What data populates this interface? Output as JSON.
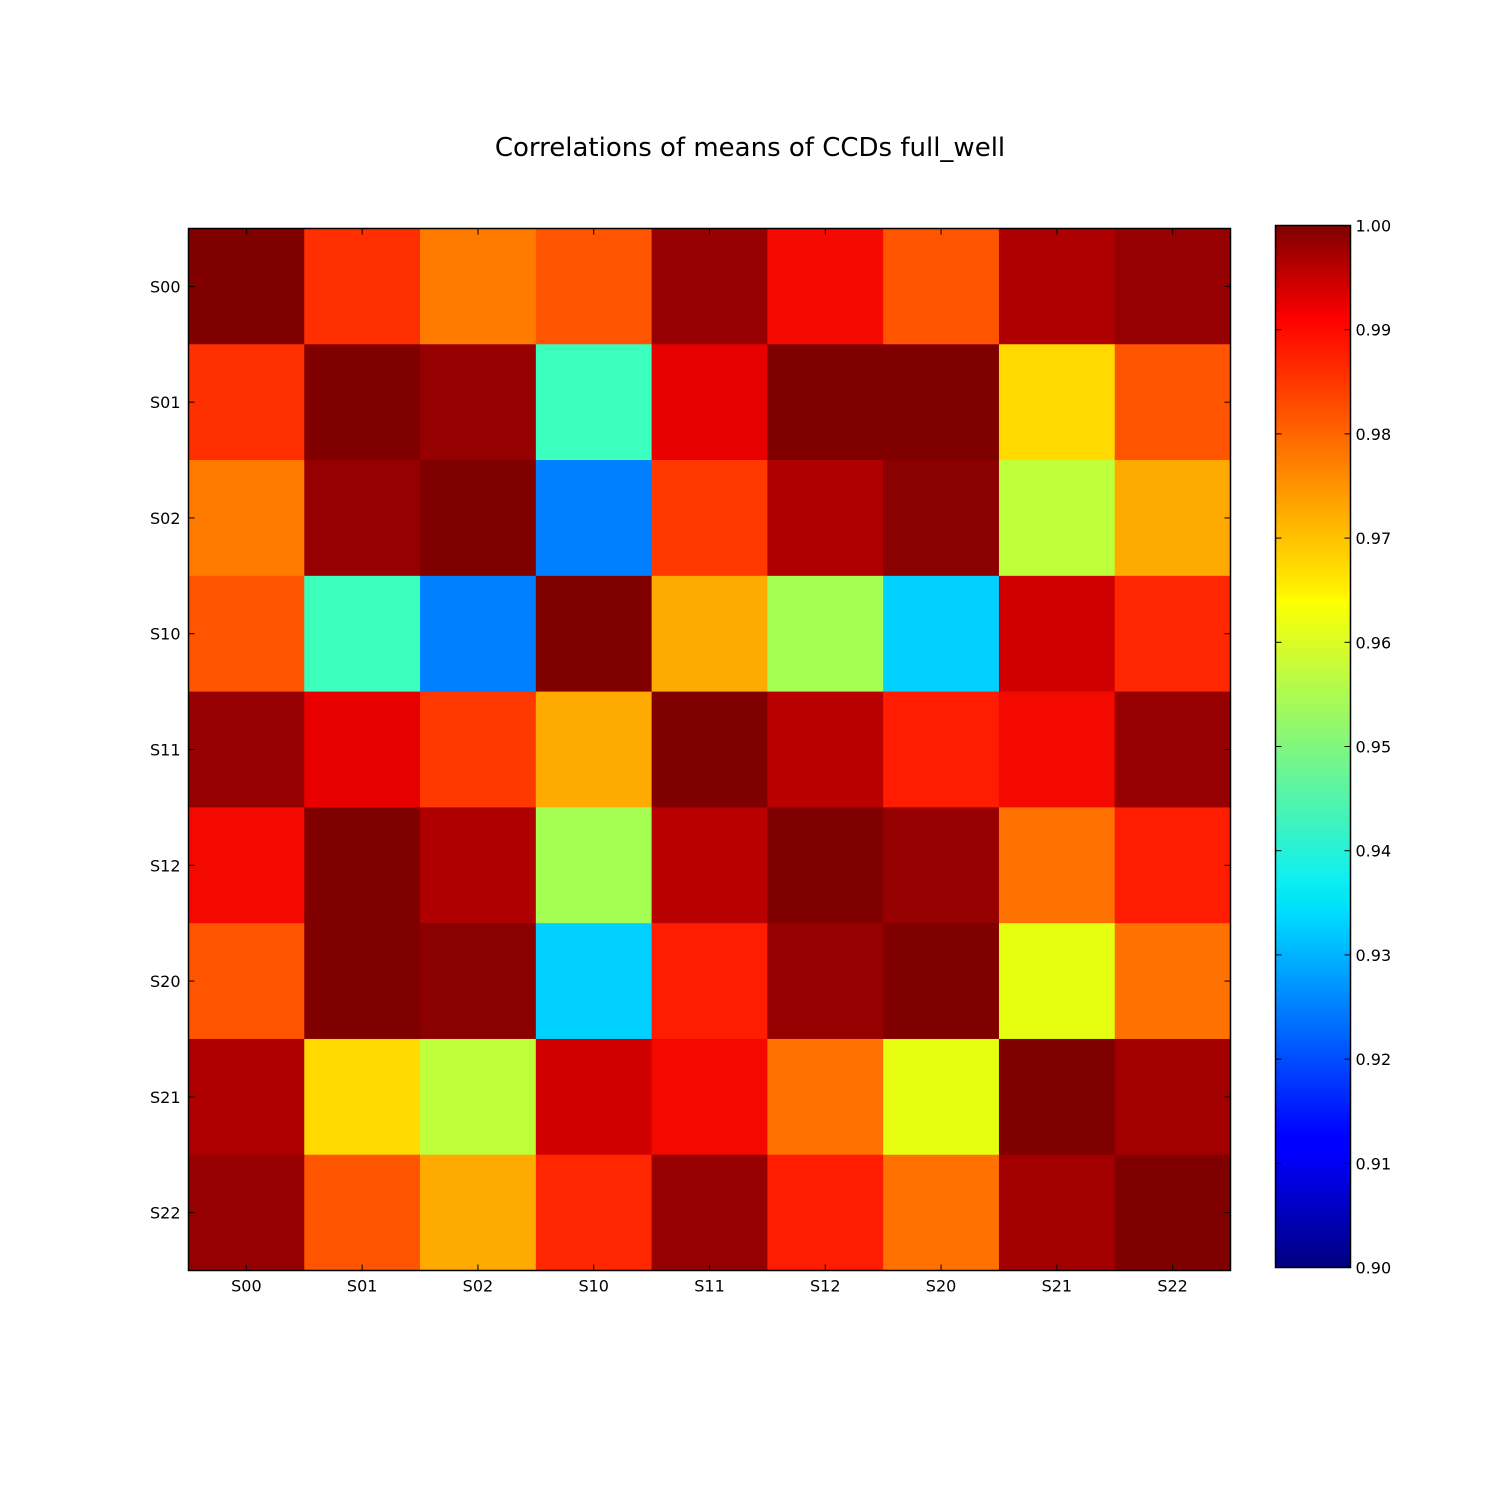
{
  "chart_data": {
    "type": "heatmap",
    "title": "Correlations of means of CCDs full_well",
    "xlabel": "",
    "ylabel": "",
    "x_categories": [
      "S00",
      "S01",
      "S02",
      "S10",
      "S11",
      "S12",
      "S20",
      "S21",
      "S22"
    ],
    "y_categories": [
      "S00",
      "S01",
      "S02",
      "S10",
      "S11",
      "S12",
      "S20",
      "S21",
      "S22"
    ],
    "values": [
      [
        1.0,
        0.986,
        0.978,
        0.982,
        0.998,
        0.99,
        0.982,
        0.996,
        0.998
      ],
      [
        0.986,
        1.0,
        0.998,
        0.942,
        0.991,
        1.0,
        1.0,
        0.968,
        0.982
      ],
      [
        0.978,
        0.998,
        1.0,
        0.925,
        0.985,
        0.996,
        0.999,
        0.958,
        0.973
      ],
      [
        0.982,
        0.942,
        0.925,
        1.0,
        0.973,
        0.955,
        0.933,
        0.993,
        0.987
      ],
      [
        0.998,
        0.991,
        0.985,
        0.973,
        1.0,
        0.995,
        0.988,
        0.99,
        0.998
      ],
      [
        0.99,
        1.0,
        0.996,
        0.955,
        0.995,
        1.0,
        0.998,
        0.979,
        0.988
      ],
      [
        0.982,
        1.0,
        0.999,
        0.933,
        0.988,
        0.998,
        1.0,
        0.963,
        0.979
      ],
      [
        0.996,
        0.968,
        0.958,
        0.993,
        0.99,
        0.979,
        0.963,
        1.0,
        0.997
      ],
      [
        0.998,
        0.982,
        0.973,
        0.987,
        0.998,
        0.988,
        0.979,
        0.997,
        1.0
      ]
    ],
    "colormap": "jet",
    "vmin": 0.9,
    "vmax": 1.0,
    "colorbar_ticks": [
      "0.90",
      "0.91",
      "0.92",
      "0.93",
      "0.94",
      "0.95",
      "0.96",
      "0.97",
      "0.98",
      "0.99",
      "1.00"
    ],
    "grid": false,
    "colorbar_position": "right"
  }
}
